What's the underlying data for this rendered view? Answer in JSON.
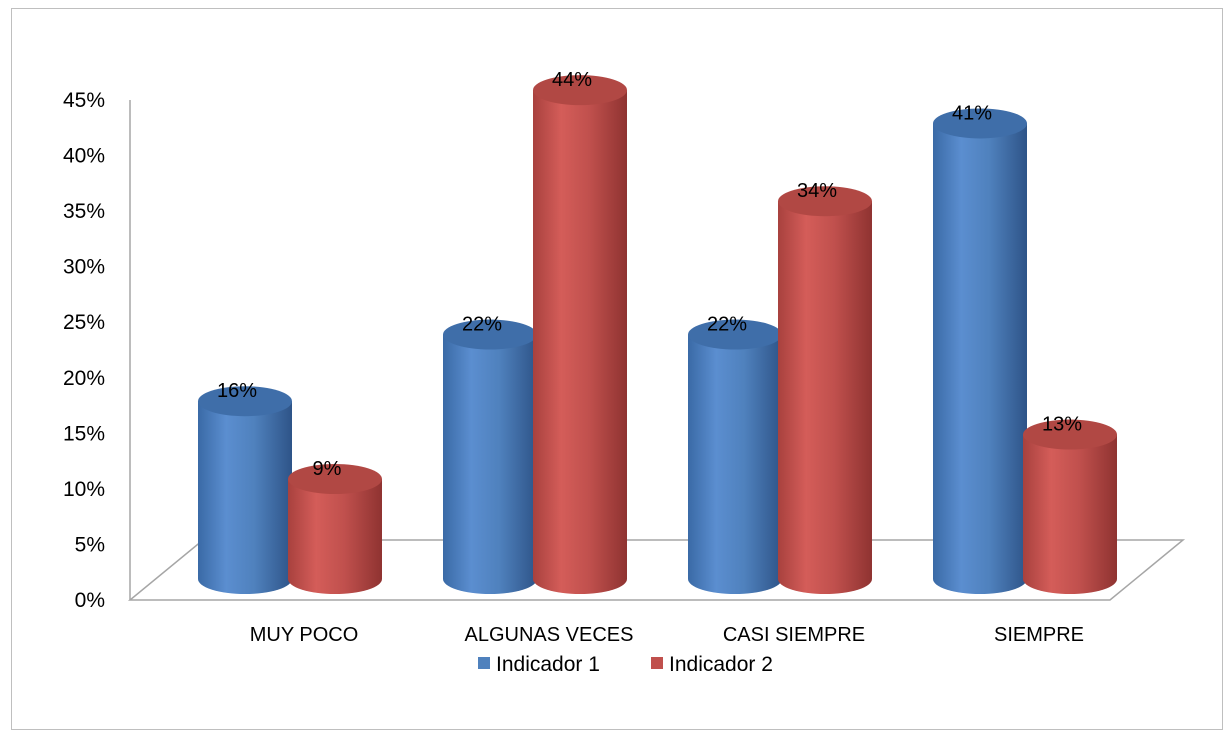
{
  "chart_data": {
    "type": "bar",
    "subtype": "3d-cylinder-clustered",
    "categories": [
      "MUY POCO",
      "ALGUNAS VECES",
      "CASI SIEMPRE",
      "SIEMPRE"
    ],
    "series": [
      {
        "name": "Indicador 1",
        "values": [
          16,
          22,
          22,
          41
        ],
        "labels": [
          "16%",
          "22%",
          "22%",
          "41%"
        ],
        "color": "#4f81bd"
      },
      {
        "name": "Indicador 2",
        "values": [
          9,
          44,
          34,
          13
        ],
        "labels": [
          "9%",
          "44%",
          "34%",
          "13%"
        ],
        "color": "#c0504d"
      }
    ],
    "y_ticks": [
      "0%",
      "5%",
      "10%",
      "15%",
      "20%",
      "25%",
      "30%",
      "35%",
      "40%",
      "45%"
    ],
    "ylim": [
      0,
      45
    ],
    "grid": false,
    "legend_position": "bottom"
  }
}
